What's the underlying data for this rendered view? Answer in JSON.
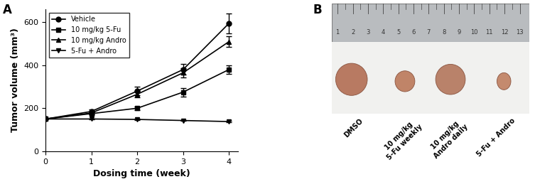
{
  "chart_data": {
    "type": "line",
    "x_label": "Dosing time (week)",
    "y_label": "Tumor volume (mm³)",
    "x": [
      0,
      1,
      2,
      3,
      4
    ],
    "xlim": [
      0,
      4.2
    ],
    "xticks": [
      0,
      1,
      2,
      3,
      4
    ],
    "ylim": [
      0,
      660
    ],
    "yticks": [
      0,
      200,
      400,
      600
    ],
    "legend": "upper left",
    "series": [
      {
        "name": "Vehicle",
        "color": "#000000",
        "marker": "circle",
        "line_style": "solid",
        "values": [
          150,
          185,
          280,
          380,
          595
        ],
        "errors": [
          0,
          8,
          20,
          25,
          45
        ]
      },
      {
        "name": "10 mg/kg 5-Fu",
        "color": "#000000",
        "marker": "square",
        "line_style": "solid",
        "values": [
          150,
          175,
          200,
          275,
          380
        ],
        "errors": [
          0,
          5,
          8,
          20,
          20
        ]
      },
      {
        "name": "10 mg/kg Andro",
        "color": "#000000",
        "marker": "triangle_up",
        "line_style": "solid",
        "values": [
          150,
          178,
          265,
          365,
          510
        ],
        "errors": [
          0,
          5,
          15,
          20,
          25
        ]
      },
      {
        "name": "5-Fu + Andro",
        "color": "#000000",
        "marker": "triangle_down",
        "line_style": "solid",
        "values": [
          150,
          150,
          148,
          143,
          138
        ],
        "errors": [
          0,
          3,
          4,
          3,
          3
        ]
      }
    ]
  },
  "panel_labels": [
    "A",
    "B"
  ],
  "photo": {
    "ruler_numbers": [
      "1",
      "2",
      "3",
      "4",
      "5",
      "6",
      "7",
      "8",
      "9",
      "10",
      "11",
      "12",
      "13"
    ],
    "labels": [
      "DMSO",
      "10 mg/kg\n5-Fu weekly",
      "10 mg/kg\nAndro daily",
      "5-Fu + Andro"
    ]
  }
}
